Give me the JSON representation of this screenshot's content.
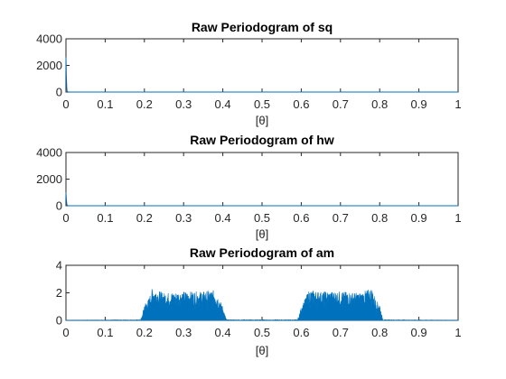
{
  "chart_data": [
    {
      "type": "line",
      "title": "Raw Periodogram of sq",
      "xlabel": "[θ]",
      "ylabel": "",
      "xlim": [
        0,
        1
      ],
      "ylim": [
        0,
        4000
      ],
      "xticks": [
        "0",
        "0.1",
        "0.2",
        "0.3",
        "0.4",
        "0.5",
        "0.6",
        "0.7",
        "0.8",
        "0.9",
        "1"
      ],
      "yticks": [
        "0",
        "2000",
        "4000"
      ],
      "color": "#0072BD",
      "series": [
        {
          "x": [
            0,
            0.001,
            0.002,
            0.003,
            0.004,
            0.006,
            0.01,
            0.05,
            0.1,
            0.2,
            0.3,
            0.4,
            0.5,
            0.6,
            0.7,
            0.8,
            0.9,
            1.0
          ],
          "values": [
            2600,
            1200,
            300,
            80,
            20,
            8,
            5,
            4,
            3,
            3,
            3,
            3,
            3,
            3,
            3,
            3,
            3,
            3
          ]
        }
      ]
    },
    {
      "type": "line",
      "title": "Raw Periodogram of hw",
      "xlabel": "[θ]",
      "ylabel": "",
      "xlim": [
        0,
        1
      ],
      "ylim": [
        0,
        4000
      ],
      "xticks": [
        "0",
        "0.1",
        "0.2",
        "0.3",
        "0.4",
        "0.5",
        "0.6",
        "0.7",
        "0.8",
        "0.9",
        "1"
      ],
      "yticks": [
        "0",
        "2000",
        "4000"
      ],
      "color": "#0072BD",
      "series": [
        {
          "x": [
            0,
            0.001,
            0.002,
            0.003,
            0.004,
            0.006,
            0.01,
            0.05,
            0.1,
            0.2,
            0.3,
            0.4,
            0.5,
            0.6,
            0.7,
            0.8,
            0.9,
            1.0
          ],
          "values": [
            1000,
            500,
            150,
            40,
            10,
            5,
            4,
            3,
            3,
            3,
            3,
            3,
            3,
            3,
            3,
            3,
            3,
            3
          ]
        }
      ]
    },
    {
      "type": "area",
      "title": "Raw Periodogram of am",
      "xlabel": "[θ]",
      "ylabel": "",
      "xlim": [
        0,
        1
      ],
      "ylim": [
        0,
        4
      ],
      "xticks": [
        "0",
        "0.1",
        "0.2",
        "0.3",
        "0.4",
        "0.5",
        "0.6",
        "0.7",
        "0.8",
        "0.9",
        "1"
      ],
      "yticks": [
        "0",
        "2",
        "4"
      ],
      "color": "#0072BD",
      "series": [
        {
          "x": [
            0,
            0.19,
            0.195,
            0.2,
            0.21,
            0.22,
            0.25,
            0.3,
            0.35,
            0.38,
            0.39,
            0.4,
            0.405,
            0.41,
            0.59,
            0.595,
            0.6,
            0.61,
            0.62,
            0.65,
            0.7,
            0.75,
            0.78,
            0.79,
            0.8,
            0.805,
            0.81,
            1.0
          ],
          "values": [
            0.02,
            0.05,
            0.4,
            1.2,
            1.5,
            2.35,
            2.0,
            2.1,
            2.1,
            2.2,
            1.6,
            1.0,
            0.4,
            0.05,
            0.05,
            0.4,
            1.0,
            1.6,
            2.2,
            2.1,
            2.1,
            2.0,
            2.35,
            1.5,
            1.2,
            0.4,
            0.05,
            0.02
          ]
        }
      ]
    }
  ]
}
